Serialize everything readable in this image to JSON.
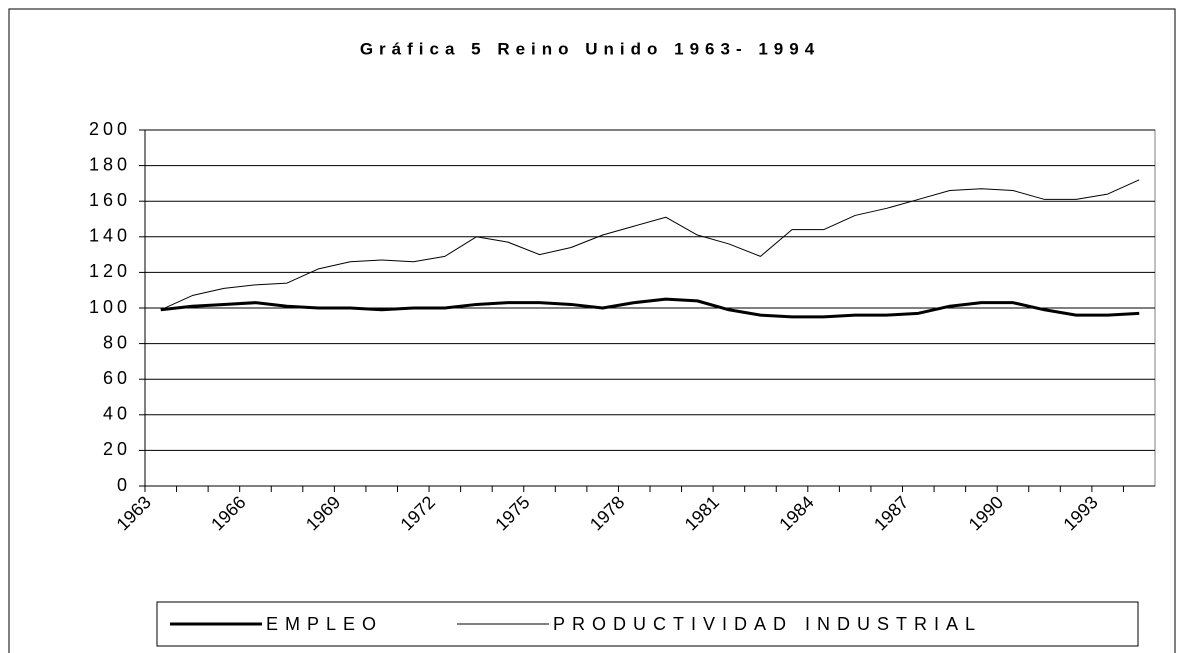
{
  "chart_data": {
    "type": "line",
    "title": "Gráfica 5 Reino Unido 1963- 1994",
    "categories": [
      "1963",
      null,
      null,
      "1966",
      null,
      null,
      "1969",
      null,
      null,
      "1972",
      null,
      null,
      "1975",
      null,
      null,
      "1978",
      null,
      null,
      "1981",
      null,
      null,
      "1984",
      null,
      null,
      "1987",
      null,
      null,
      "1990",
      null,
      null,
      "1993",
      null
    ],
    "series": [
      {
        "name": "EMPLEO",
        "color": "#000000",
        "width": 3,
        "values": [
          99,
          101,
          102,
          103,
          101,
          100,
          100,
          99,
          100,
          100,
          102,
          103,
          103,
          102,
          100,
          103,
          105,
          104,
          99,
          96,
          95,
          95,
          96,
          96,
          97,
          101,
          103,
          103,
          99,
          96,
          96,
          97
        ]
      },
      {
        "name": "PRODUCTIVIDAD INDUSTRIAL",
        "color": "#000000",
        "width": 1,
        "values": [
          99,
          107,
          111,
          113,
          114,
          122,
          126,
          127,
          126,
          129,
          140,
          137,
          130,
          134,
          141,
          146,
          151,
          141,
          136,
          129,
          144,
          144,
          152,
          156,
          161,
          166,
          167,
          166,
          161,
          161,
          164,
          172
        ]
      }
    ],
    "ylim": [
      0,
      200
    ],
    "yticks": [
      0,
      20,
      40,
      60,
      80,
      100,
      120,
      140,
      160,
      180,
      200
    ],
    "grid": true,
    "legend": "bottom"
  }
}
